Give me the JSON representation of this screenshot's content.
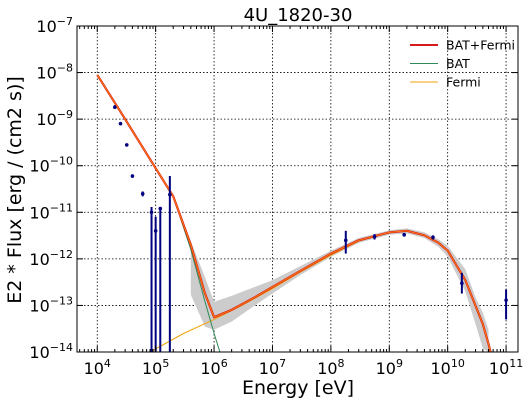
{
  "chart_data": {
    "type": "line",
    "title": "4U_1820-30",
    "xlabel": "Energy [eV]",
    "ylabel": "E2 * Flux [erg / (cm2 s)]",
    "xscale": "log",
    "yscale": "log",
    "xlim": [
      4500.0,
      160000000000.0
    ],
    "ylim": [
      1e-14,
      1e-07
    ],
    "x_ticks": [
      {
        "base": "10",
        "exp": "4",
        "value": 10000.0
      },
      {
        "base": "10",
        "exp": "5",
        "value": 100000.0
      },
      {
        "base": "10",
        "exp": "6",
        "value": 1000000.0
      },
      {
        "base": "10",
        "exp": "7",
        "value": 10000000.0
      },
      {
        "base": "10",
        "exp": "8",
        "value": 100000000.0
      },
      {
        "base": "10",
        "exp": "9",
        "value": 1000000000.0
      },
      {
        "base": "10",
        "exp": "10",
        "value": 10000000000.0
      },
      {
        "base": "10",
        "exp": "11",
        "value": 100000000000.0
      }
    ],
    "y_ticks": [
      {
        "base": "10",
        "exp": "−14",
        "value": 1e-14
      },
      {
        "base": "10",
        "exp": "−13",
        "value": 1e-13
      },
      {
        "base": "10",
        "exp": "−12",
        "value": 1e-12
      },
      {
        "base": "10",
        "exp": "−11",
        "value": 1e-11
      },
      {
        "base": "10",
        "exp": "−10",
        "value": 1e-10
      },
      {
        "base": "10",
        "exp": "−9",
        "value": 1e-09
      },
      {
        "base": "10",
        "exp": "−8",
        "value": 1e-08
      },
      {
        "base": "10",
        "exp": "−7",
        "value": 1e-07
      }
    ],
    "grid": true,
    "legend_position": "top-right",
    "legend": [
      {
        "label": "BAT+Fermi",
        "color": "#d7191c"
      },
      {
        "label": "BAT",
        "color": "#2e8b57"
      },
      {
        "label": "Fermi",
        "color": "#f0a30a"
      }
    ],
    "colors": {
      "combined": "#d7191c",
      "combined_overlay": "#ff7f0e",
      "bat": "#2e8b57",
      "fermi": "#f0a30a",
      "band": "#cccccc",
      "points": "#000080"
    },
    "series": [
      {
        "name": "BAT+Fermi",
        "x": [
          10000.0,
          30000.0,
          100000.0,
          200000.0,
          400000.0,
          700000.0,
          1000000.0,
          2000000.0,
          5000000.0,
          10000000.0,
          30000000.0,
          100000000.0,
          300000000.0,
          1000000000.0,
          2000000000.0,
          4000000000.0,
          7000000000.0,
          10000000000.0,
          20000000000.0,
          40000000000.0,
          50000000000.0,
          60000000000.0
        ],
        "y": [
          8.9e-09,
          1e-09,
          8.8e-11,
          2.2e-11,
          2e-12,
          1.8e-13,
          5.6e-14,
          8e-14,
          1.5e-13,
          2.5e-13,
          5.5e-13,
          1.3e-12,
          2.5e-12,
          3.7e-12,
          4e-12,
          3.2e-12,
          2.2e-12,
          1.5e-12,
          3.5e-13,
          4e-14,
          1.5e-14,
          6e-15
        ]
      },
      {
        "name": "BAT",
        "x": [
          10000.0,
          30000.0,
          100000.0,
          200000.0,
          400000.0,
          700000.0,
          1000000.0,
          1500000.0
        ],
        "y": [
          8.9e-09,
          1e-09,
          8.8e-11,
          2.2e-11,
          1.6e-12,
          1.2e-13,
          2.5e-14,
          5e-15
        ]
      },
      {
        "name": "Fermi",
        "x": [
          80000.0,
          300000.0,
          1000000.0,
          3000000.0,
          10000000.0,
          30000000.0,
          100000000.0,
          300000000.0,
          1000000000.0,
          2000000000.0,
          4000000000.0,
          7000000000.0,
          10000000000.0,
          20000000000.0,
          40000000000.0,
          50000000000.0,
          60000000000.0
        ],
        "y": [
          1e-14,
          2.5e-14,
          5e-14,
          1e-13,
          2.3e-13,
          5.2e-13,
          1.2e-12,
          2.4e-12,
          3.7e-12,
          4e-12,
          3.2e-12,
          2.2e-12,
          1.5e-12,
          3.5e-13,
          4e-14,
          1.5e-14,
          6e-15
        ]
      }
    ],
    "band": {
      "x": [
        400000.0,
        700000.0,
        1000000.0,
        2000000.0,
        5000000.0,
        10000000.0,
        30000000.0,
        100000000.0,
        300000000.0,
        1000000000.0,
        2000000000.0,
        4000000000.0,
        7000000000.0,
        10000000000.0,
        20000000000.0,
        30000000000.0,
        40000000000.0,
        50000000000.0
      ],
      "y_low": [
        1.7e-13,
        3.5e-14,
        3e-14,
        4.5e-14,
        1e-13,
        1.8e-13,
        4.5e-13,
        1.1e-12,
        2.2e-12,
        3.3e-12,
        3.5e-12,
        2.8e-12,
        1.8e-12,
        1.1e-12,
        2e-13,
        4e-14,
        1.2e-14,
        1e-14
      ],
      "y_high": [
        2.4e-12,
        4e-13,
        1.2e-13,
        1.6e-13,
        2.5e-13,
        3.5e-13,
        7e-13,
        1.5e-12,
        2.8e-12,
        4.1e-12,
        4.5e-12,
        3.7e-12,
        2.6e-12,
        1.9e-12,
        6e-13,
        1.5e-13,
        7e-14,
        3e-14
      ]
    },
    "points": [
      {
        "x": 20000.0,
        "y": 1.8e-09,
        "lo": 1.7e-09,
        "hi": 2e-09
      },
      {
        "x": 25000.0,
        "y": 8e-10,
        "lo": 7.5e-10,
        "hi": 8.5e-10
      },
      {
        "x": 32000.0,
        "y": 2.8e-10,
        "lo": 2.6e-10,
        "hi": 3e-10
      },
      {
        "x": 40000.0,
        "y": 6e-11,
        "lo": 5.5e-11,
        "hi": 6.5e-11
      },
      {
        "x": 60000.0,
        "y": 2.5e-11,
        "lo": 2.2e-11,
        "hi": 2.8e-11
      },
      {
        "x": 85000.0,
        "y": 1e-11,
        "lo": 1e-14,
        "hi": 1.3e-11
      },
      {
        "x": 100000.0,
        "y": 4e-12,
        "lo": 1e-14,
        "hi": 8e-12
      },
      {
        "x": 120000.0,
        "y": 1.2e-11,
        "lo": 1e-14,
        "hi": 1.3e-11
      },
      {
        "x": 175000.0,
        "y": 2.4e-11,
        "lo": 1e-14,
        "hi": 6e-11
      },
      {
        "x": 180000000.0,
        "y": 2.5e-12,
        "lo": 1.3e-12,
        "hi": 4e-12
      },
      {
        "x": 560000000.0,
        "y": 3e-12,
        "lo": 2.6e-12,
        "hi": 3.4e-12
      },
      {
        "x": 1800000000.0,
        "y": 3.3e-12,
        "lo": 3e-12,
        "hi": 3.6e-12
      },
      {
        "x": 5600000000.0,
        "y": 2.9e-12,
        "lo": 2.6e-12,
        "hi": 3.2e-12
      },
      {
        "x": 17500000000.0,
        "y": 3e-13,
        "lo": 1.8e-13,
        "hi": 5e-13
      },
      {
        "x": 100000000000.0,
        "y": 1.3e-13,
        "lo": 5e-14,
        "hi": 2.2e-13
      }
    ]
  }
}
